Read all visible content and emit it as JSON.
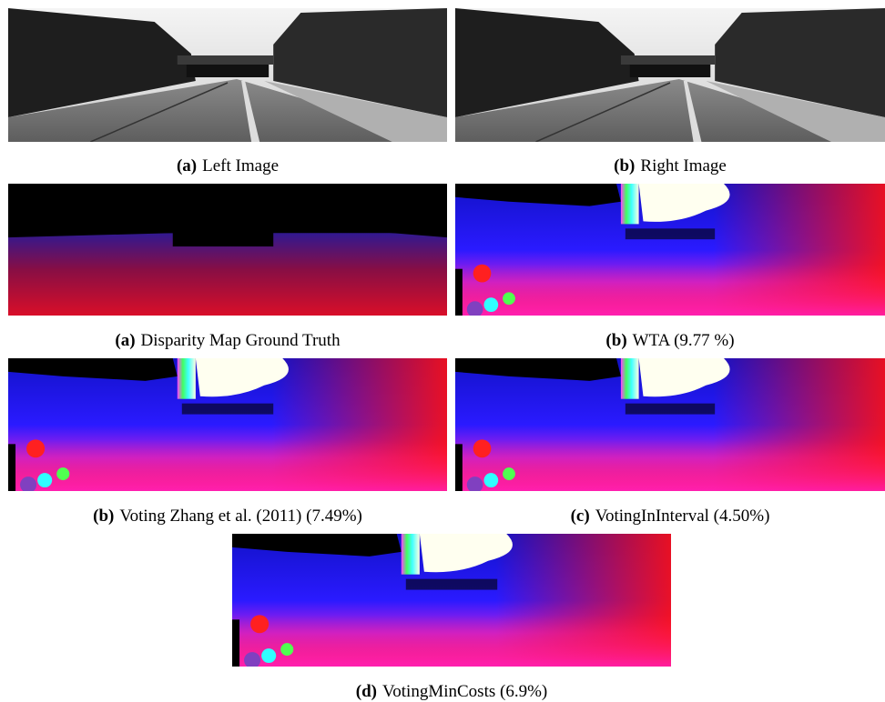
{
  "panels": [
    {
      "label": "(a)",
      "caption": "Left Image"
    },
    {
      "label": "(b)",
      "caption": "Right Image"
    },
    {
      "label": "(a)",
      "caption": "Disparity Map Ground Truth"
    },
    {
      "label": "(b)",
      "caption": "WTA (9.77 %)"
    },
    {
      "label": "(b)",
      "caption": "Voting Zhang et al. (2011) (7.49%)"
    },
    {
      "label": "(c)",
      "caption": "VotingInInterval (4.50%)"
    },
    {
      "label": "(d)",
      "caption": "VotingMinCosts (6.9%)"
    }
  ]
}
